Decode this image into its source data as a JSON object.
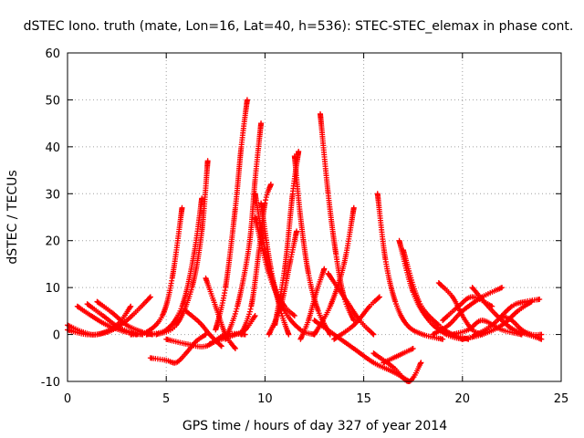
{
  "chart_data": {
    "type": "scatter",
    "title": "dSTEC Iono. truth (mate, Lon=16, Lat=40, h=536): STEC-STEC_elemax in phase cont.",
    "xlabel": "GPS time / hours of day 327 of year 2014",
    "ylabel": "dSTEC  / TECUs",
    "xlim": [
      0,
      25
    ],
    "ylim": [
      -10,
      60
    ],
    "xticks": [
      "0",
      "5",
      "10",
      "15",
      "20",
      "25"
    ],
    "yticks": [
      "-10",
      "0",
      "10",
      "20",
      "30",
      "40",
      "50",
      "60"
    ],
    "grid": true,
    "marker": "plus",
    "color": "#ff0000",
    "series": [
      {
        "x": [
          0,
          1,
          2,
          3,
          4.2
        ],
        "y": [
          1,
          0,
          0.5,
          3,
          8
        ]
      },
      {
        "x": [
          0,
          0.8,
          1.5,
          2.5,
          3.2
        ],
        "y": [
          2,
          0.5,
          0,
          2,
          6
        ]
      },
      {
        "x": [
          0.5,
          1.2,
          2,
          3,
          3.8
        ],
        "y": [
          6,
          4,
          2,
          0.5,
          0
        ]
      },
      {
        "x": [
          1,
          1.8,
          2.6,
          3.5
        ],
        "y": [
          6.5,
          4,
          1.5,
          0
        ]
      },
      {
        "x": [
          1.5,
          2.3,
          3,
          3.8,
          4.3
        ],
        "y": [
          7,
          4.5,
          2,
          0.5,
          0
        ]
      },
      {
        "x": [
          3.2,
          4,
          4.8,
          5.3,
          5.8
        ],
        "y": [
          0,
          0.5,
          4,
          12,
          27
        ]
      },
      {
        "x": [
          4,
          5,
          5.8,
          6.4,
          6.8
        ],
        "y": [
          0,
          1,
          6,
          17,
          29
        ]
      },
      {
        "x": [
          4.5,
          5.5,
          6.3,
          6.8,
          7.1
        ],
        "y": [
          0,
          2,
          10,
          22,
          37
        ]
      },
      {
        "x": [
          4.2,
          5,
          5.5,
          6,
          6.5,
          7
        ],
        "y": [
          -5,
          -5.5,
          -6,
          -4,
          -1.5,
          0
        ]
      },
      {
        "x": [
          6,
          6.7,
          7.2,
          7.8
        ],
        "y": [
          5,
          2.5,
          0,
          -2.5
        ]
      },
      {
        "x": [
          5,
          6,
          7,
          8,
          9
        ],
        "y": [
          -1,
          -2,
          -2.5,
          0,
          0
        ]
      },
      {
        "x": [
          7,
          7.5,
          8,
          8.5
        ],
        "y": [
          12,
          6,
          0,
          -3
        ]
      },
      {
        "x": [
          7.2,
          7.8,
          8.5,
          9,
          9.5
        ],
        "y": [
          -2,
          -1,
          0,
          1,
          4
        ]
      },
      {
        "x": [
          7.5,
          8,
          8.5,
          8.8,
          9.1
        ],
        "y": [
          1,
          10,
          27,
          40,
          50
        ]
      },
      {
        "x": [
          8,
          8.6,
          9.2,
          9.5,
          9.8
        ],
        "y": [
          -1,
          6,
          19,
          33,
          45
        ]
      },
      {
        "x": [
          8.8,
          9.3,
          9.7,
          10,
          10.3
        ],
        "y": [
          0,
          6,
          18,
          28,
          32
        ]
      },
      {
        "x": [
          9.5,
          10,
          10.5,
          11,
          11.5
        ],
        "y": [
          30,
          18,
          10,
          6,
          4
        ]
      },
      {
        "x": [
          9.8,
          10.3,
          10.8,
          11.2
        ],
        "y": [
          28,
          14,
          5,
          0
        ]
      },
      {
        "x": [
          9.5,
          10.2,
          11,
          11.8,
          12.5
        ],
        "y": [
          25,
          13,
          5,
          1,
          0
        ]
      },
      {
        "x": [
          10.2,
          10.8,
          11.3,
          11.6
        ],
        "y": [
          0,
          6,
          16,
          22
        ]
      },
      {
        "x": [
          10.5,
          11,
          11.4,
          11.7
        ],
        "y": [
          2,
          14,
          30,
          39
        ]
      },
      {
        "x": [
          11.5,
          11.8,
          12.2,
          12.7,
          13.3
        ],
        "y": [
          38,
          25,
          13,
          5,
          0
        ]
      },
      {
        "x": [
          11.8,
          12.2,
          12.6,
          13
        ],
        "y": [
          -1,
          3,
          9,
          14
        ]
      },
      {
        "x": [
          12.8,
          13.2,
          13.6,
          14,
          14.5
        ],
        "y": [
          47,
          30,
          17,
          8,
          3
        ]
      },
      {
        "x": [
          12.5,
          13.3,
          14,
          14.5
        ],
        "y": [
          0,
          6,
          15,
          27
        ]
      },
      {
        "x": [
          13.2,
          14,
          14.8,
          15.5
        ],
        "y": [
          13,
          8,
          3,
          0
        ]
      },
      {
        "x": [
          13.5,
          14.5,
          15.3,
          15.8
        ],
        "y": [
          -1,
          2,
          6,
          8
        ]
      },
      {
        "x": [
          12.5,
          13.5,
          14.5,
          15.5,
          16.5,
          17.3
        ],
        "y": [
          3,
          0,
          -3,
          -6,
          -8,
          -10
        ]
      },
      {
        "x": [
          15.5,
          16.5,
          17.3,
          17.9
        ],
        "y": [
          -4,
          -7,
          -10,
          -6
        ]
      },
      {
        "x": [
          16,
          16.5,
          17,
          17.5
        ],
        "y": [
          -6,
          -5,
          -4,
          -3
        ]
      },
      {
        "x": [
          15.7,
          16.1,
          16.6,
          17.2,
          18,
          19
        ],
        "y": [
          30,
          16,
          7,
          2,
          0,
          -1
        ]
      },
      {
        "x": [
          16.8,
          17.5,
          18.3,
          19.2,
          20
        ],
        "y": [
          20,
          9,
          3,
          0,
          -1
        ]
      },
      {
        "x": [
          17,
          17.8,
          18.8,
          19.5,
          20.3
        ],
        "y": [
          18,
          7,
          2,
          0,
          -1
        ]
      },
      {
        "x": [
          18.5,
          19.3,
          20,
          21,
          22
        ],
        "y": [
          0,
          2,
          5,
          8,
          10
        ]
      },
      {
        "x": [
          18.8,
          19.5,
          20,
          20.5,
          21
        ],
        "y": [
          11,
          8,
          4,
          1,
          0
        ]
      },
      {
        "x": [
          19,
          19.8,
          20.5,
          21.5
        ],
        "y": [
          3,
          6,
          8,
          6
        ]
      },
      {
        "x": [
          19.5,
          20.3,
          21,
          22,
          23
        ],
        "y": [
          0,
          1,
          3,
          1,
          0
        ]
      },
      {
        "x": [
          20,
          21,
          22,
          22.8,
          23.5
        ],
        "y": [
          -1,
          0,
          2,
          5,
          7
        ]
      },
      {
        "x": [
          20.5,
          21.5,
          22.5,
          23.2,
          23.9
        ],
        "y": [
          -0.5,
          2,
          6,
          7,
          7.5
        ]
      },
      {
        "x": [
          20.5,
          21.3,
          22,
          22.6,
          23.3,
          24
        ],
        "y": [
          10,
          6,
          3,
          1,
          0,
          -1
        ]
      },
      {
        "x": [
          22,
          22.5,
          23,
          23.5,
          24
        ],
        "y": [
          4,
          3,
          1,
          0,
          0
        ]
      }
    ]
  }
}
